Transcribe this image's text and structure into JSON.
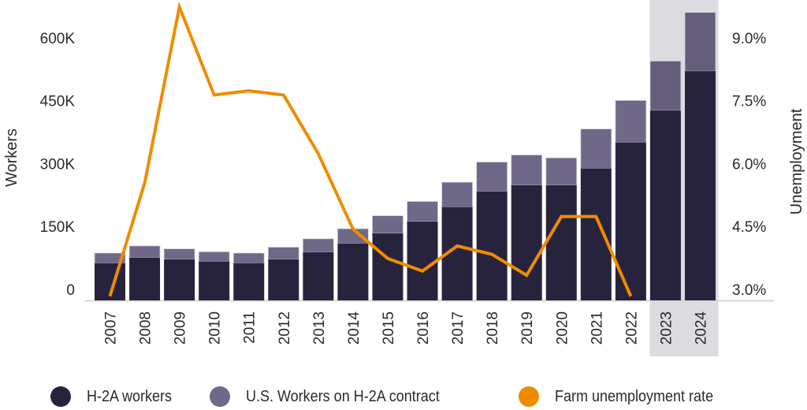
{
  "chart_data": {
    "type": "bar",
    "stacked": true,
    "categories": [
      "2007",
      "2008",
      "2009",
      "2010",
      "2011",
      "2012",
      "2013",
      "2014",
      "2015",
      "2016",
      "2017",
      "2018",
      "2019",
      "2020",
      "2021",
      "2022",
      "2023",
      "2024"
    ],
    "highlighted_categories": [
      "2023",
      "2024"
    ],
    "series": [
      {
        "name": "H-2A workers",
        "axis": "left",
        "color": "#28233d",
        "values": [
          89000,
          102000,
          98000,
          93000,
          89000,
          98000,
          115000,
          136000,
          160000,
          188000,
          223000,
          260000,
          275000,
          275000,
          315000,
          377000,
          453000,
          547000
        ]
      },
      {
        "name": "U.S. Workers on H-2A contract",
        "axis": "left",
        "color": "#6f6889",
        "values": [
          24000,
          28000,
          25000,
          23000,
          24000,
          29000,
          32000,
          35000,
          42000,
          48000,
          59000,
          70000,
          72000,
          65000,
          94000,
          100000,
          118000,
          140000
        ]
      },
      {
        "name": "Farm unemployment rate",
        "axis": "right",
        "type": "line",
        "color": "#ee8c00",
        "values": [
          3.1,
          5.8,
          10.0,
          7.9,
          8.0,
          7.9,
          6.5,
          4.7,
          4.0,
          3.7,
          4.3,
          4.1,
          3.6,
          5.0,
          5.0,
          3.1,
          null,
          null
        ]
      }
    ],
    "ylabel": "Workers",
    "y2label": "Unemployment",
    "ylim": [
      0,
      700000
    ],
    "y2lim": [
      3.0,
      10.0
    ],
    "yticks": [
      {
        "value": 0,
        "label": "0"
      },
      {
        "value": 150000,
        "label": "150K"
      },
      {
        "value": 300000,
        "label": "300K"
      },
      {
        "value": 450000,
        "label": "450K"
      },
      {
        "value": 600000,
        "label": "600K"
      }
    ],
    "y2ticks": [
      {
        "value": 3.0,
        "label": "3.0%"
      },
      {
        "value": 4.5,
        "label": "4.5%"
      },
      {
        "value": 6.0,
        "label": "6.0%"
      },
      {
        "value": 7.5,
        "label": "7.5%"
      },
      {
        "value": 9.0,
        "label": "9.0%"
      }
    ],
    "grid": false,
    "legend_position": "bottom",
    "highlight_color": "#dcdce0"
  },
  "legend": [
    {
      "label": "H-2A workers",
      "color": "#28233d"
    },
    {
      "label": "U.S. Workers on H-2A contract",
      "color": "#6f6889"
    },
    {
      "label": "Farm unemployment rate",
      "color": "#ee8c00"
    }
  ]
}
